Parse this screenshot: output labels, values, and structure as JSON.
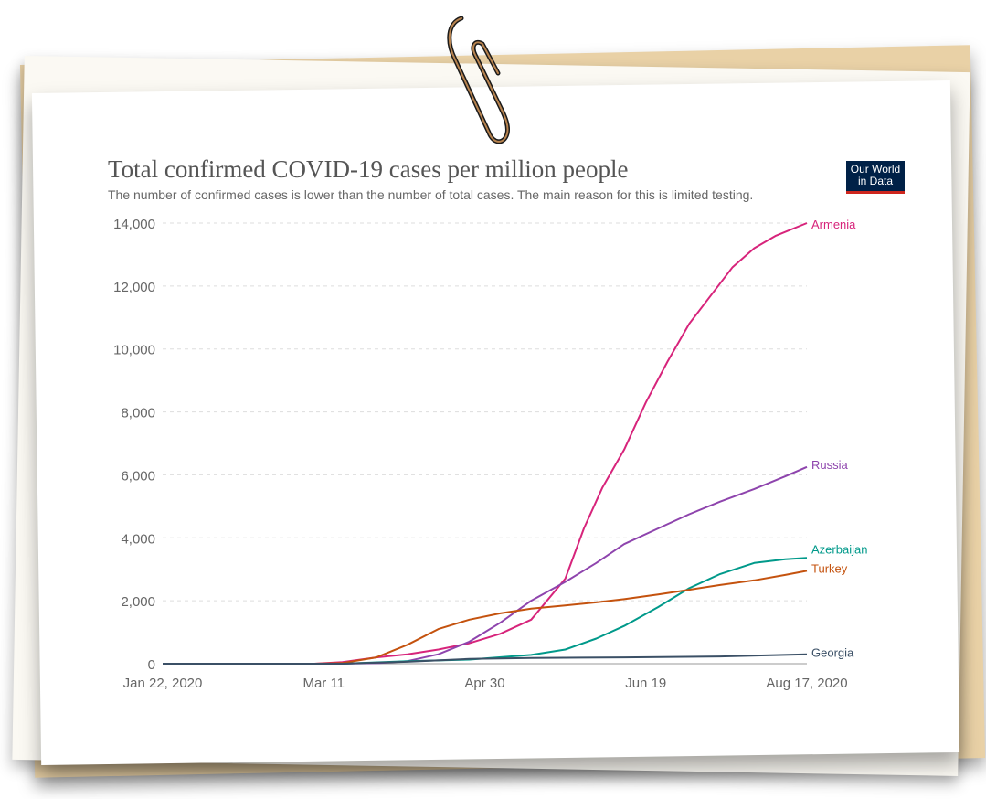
{
  "title": "Total confirmed COVID-19 cases per million people",
  "subtitle": "The number of confirmed cases is lower than the number of total cases. The main reason for this is limited testing.",
  "logo": {
    "line1": "Our World",
    "line2": "in Data"
  },
  "chart_data": {
    "type": "line",
    "title": "Total confirmed COVID-19 cases per million people",
    "subtitle": "The number of confirmed cases is lower than the number of total cases. The main reason for this is limited testing.",
    "xlabel": "",
    "ylabel": "",
    "x_ticks": [
      "Jan 22, 2020",
      "Mar 11",
      "Apr 30",
      "Jun 19",
      "Aug 17, 2020"
    ],
    "xlim": [
      "2020-01-22",
      "2020-08-17"
    ],
    "ylim": [
      0,
      14000
    ],
    "y_ticks": [
      0,
      2000,
      4000,
      6000,
      8000,
      10000,
      12000,
      14000
    ],
    "y_tick_labels": [
      "0",
      "2,000",
      "4,000",
      "6,000",
      "8,000",
      "10,000",
      "12,000",
      "14,000"
    ],
    "grid": "horizontal-dashed",
    "legend": "end-of-line labels",
    "series": [
      {
        "name": "Armenia",
        "color": "#d7247b",
        "x": [
          "2020-01-22",
          "2020-03-11",
          "2020-03-20",
          "2020-03-31",
          "2020-04-10",
          "2020-04-20",
          "2020-04-30",
          "2020-05-10",
          "2020-05-20",
          "2020-05-31",
          "2020-06-06",
          "2020-06-12",
          "2020-06-19",
          "2020-06-26",
          "2020-07-03",
          "2020-07-10",
          "2020-07-17",
          "2020-07-24",
          "2020-07-31",
          "2020-08-07",
          "2020-08-17"
        ],
        "y": [
          0,
          0,
          50,
          200,
          300,
          450,
          650,
          950,
          1400,
          2700,
          4300,
          5600,
          6800,
          8300,
          9600,
          10800,
          11700,
          12600,
          13200,
          13600,
          14000
        ]
      },
      {
        "name": "Russia",
        "color": "#8e44ad",
        "x": [
          "2020-01-22",
          "2020-03-20",
          "2020-04-01",
          "2020-04-10",
          "2020-04-20",
          "2020-04-30",
          "2020-05-10",
          "2020-05-20",
          "2020-05-31",
          "2020-06-10",
          "2020-06-19",
          "2020-06-30",
          "2020-07-10",
          "2020-07-20",
          "2020-07-31",
          "2020-08-10",
          "2020-08-17"
        ],
        "y": [
          0,
          0,
          20,
          80,
          300,
          700,
          1300,
          2000,
          2600,
          3200,
          3800,
          4300,
          4750,
          5150,
          5550,
          5950,
          6250
        ]
      },
      {
        "name": "Azerbaijan",
        "color": "#00998a",
        "x": [
          "2020-01-22",
          "2020-03-20",
          "2020-04-10",
          "2020-04-30",
          "2020-05-20",
          "2020-05-31",
          "2020-06-10",
          "2020-06-19",
          "2020-06-30",
          "2020-07-10",
          "2020-07-20",
          "2020-07-31",
          "2020-08-10",
          "2020-08-17"
        ],
        "y": [
          0,
          0,
          80,
          130,
          280,
          450,
          800,
          1200,
          1800,
          2400,
          2850,
          3200,
          3320,
          3360
        ]
      },
      {
        "name": "Turkey",
        "color": "#c4520e",
        "x": [
          "2020-01-22",
          "2020-03-11",
          "2020-03-20",
          "2020-03-31",
          "2020-04-10",
          "2020-04-20",
          "2020-04-30",
          "2020-05-10",
          "2020-05-20",
          "2020-05-31",
          "2020-06-10",
          "2020-06-19",
          "2020-06-30",
          "2020-07-10",
          "2020-07-20",
          "2020-07-31",
          "2020-08-10",
          "2020-08-17"
        ],
        "y": [
          0,
          0,
          20,
          200,
          600,
          1100,
          1400,
          1600,
          1750,
          1850,
          1950,
          2050,
          2200,
          2350,
          2500,
          2650,
          2820,
          2950
        ]
      },
      {
        "name": "Georgia",
        "color": "#3b5066",
        "x": [
          "2020-01-22",
          "2020-03-20",
          "2020-04-10",
          "2020-04-30",
          "2020-05-20",
          "2020-06-19",
          "2020-07-20",
          "2020-08-17"
        ],
        "y": [
          0,
          0,
          60,
          150,
          180,
          200,
          230,
          300
        ]
      }
    ]
  }
}
